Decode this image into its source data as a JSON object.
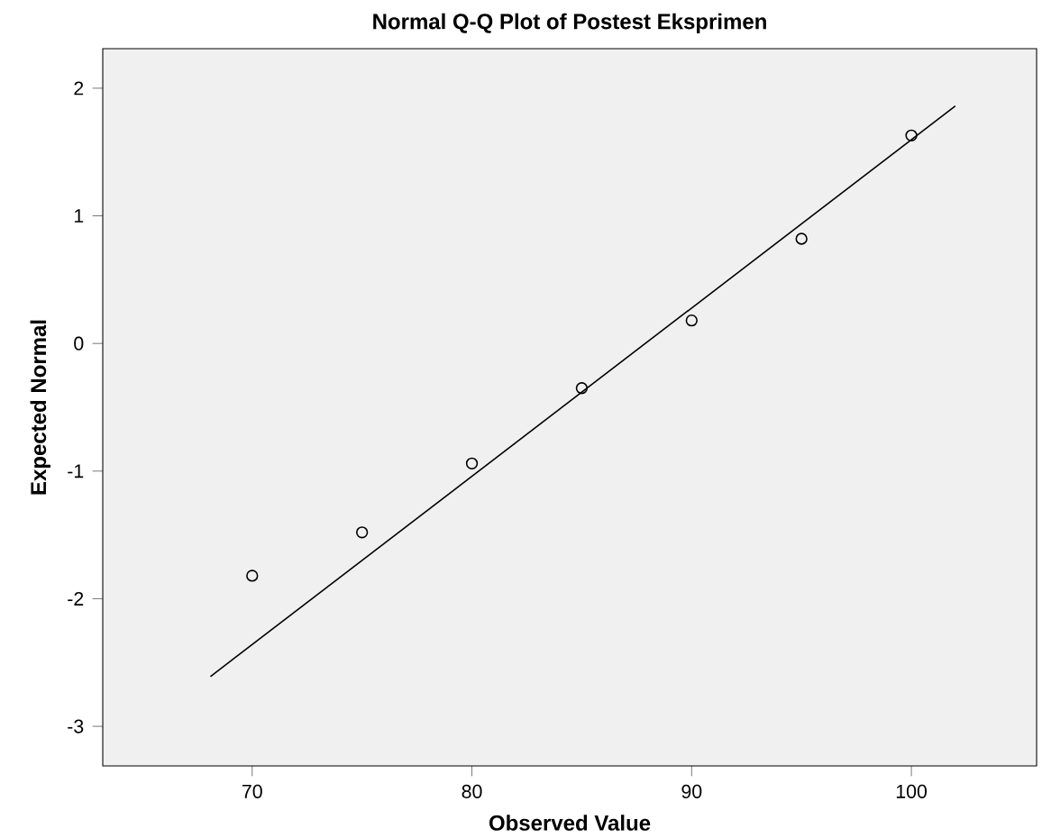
{
  "chart_data": {
    "type": "scatter",
    "title": "Normal Q-Q Plot of Postest Eksprimen",
    "xlabel": "Observed Value",
    "ylabel": "Expected Normal",
    "xlim": [
      63.2,
      105.7
    ],
    "ylim": [
      -3.31,
      2.31
    ],
    "xticks": [
      70,
      80,
      90,
      100
    ],
    "yticks": [
      -3,
      -2,
      -1,
      0,
      1,
      2
    ],
    "grid": false,
    "series": [
      {
        "marker": "circle",
        "color": "#000000",
        "x": [
          70,
          75,
          80,
          85,
          90,
          95,
          100
        ],
        "values": [
          -1.82,
          -1.48,
          -0.94,
          -0.35,
          0.18,
          0.82,
          1.63
        ]
      },
      {
        "type": "line",
        "marker": "none",
        "color": "#000000",
        "x": [
          68.1,
          102
        ],
        "values": [
          -2.61,
          1.86
        ]
      }
    ]
  }
}
